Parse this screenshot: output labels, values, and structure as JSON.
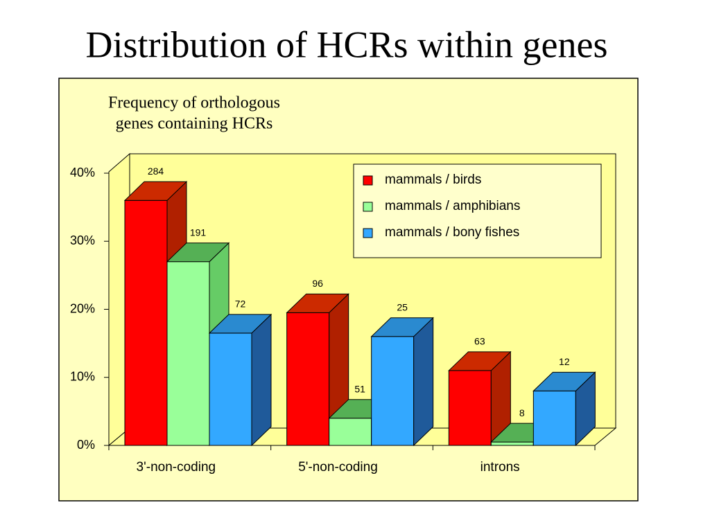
{
  "chart_data": {
    "type": "bar3d",
    "title": "Distribution of HCRs within genes",
    "subtitle": [
      "Frequency of orthologous",
      "genes  containing HCRs"
    ],
    "categories": [
      "3'-non-coding",
      "5'-non-coding",
      "introns"
    ],
    "series": [
      {
        "name": "mammals / birds",
        "color": "#ff0000",
        "side": "#b02000",
        "top": "#cc2a00",
        "values": [
          36,
          19.5,
          11
        ],
        "counts": [
          284,
          96,
          63
        ]
      },
      {
        "name": "mammals / amphibians",
        "color": "#99ff99",
        "side": "#66cc66",
        "top": "#55b055",
        "values": [
          27,
          4,
          0.5
        ],
        "counts": [
          191,
          51,
          8
        ]
      },
      {
        "name": "mammals / bony fishes",
        "color": "#33a8ff",
        "side": "#1f5a9a",
        "top": "#2a8ad0",
        "values": [
          16.5,
          16,
          8
        ],
        "counts": [
          72,
          25,
          12
        ]
      }
    ],
    "ylim": [
      0,
      40
    ],
    "yticks": [
      {
        "value": 0,
        "label": "0%"
      },
      {
        "value": 10,
        "label": "10%"
      },
      {
        "value": 20,
        "label": "20%"
      },
      {
        "value": 30,
        "label": "30%"
      },
      {
        "value": 40,
        "label": "40%"
      }
    ],
    "legend": "top-right"
  }
}
